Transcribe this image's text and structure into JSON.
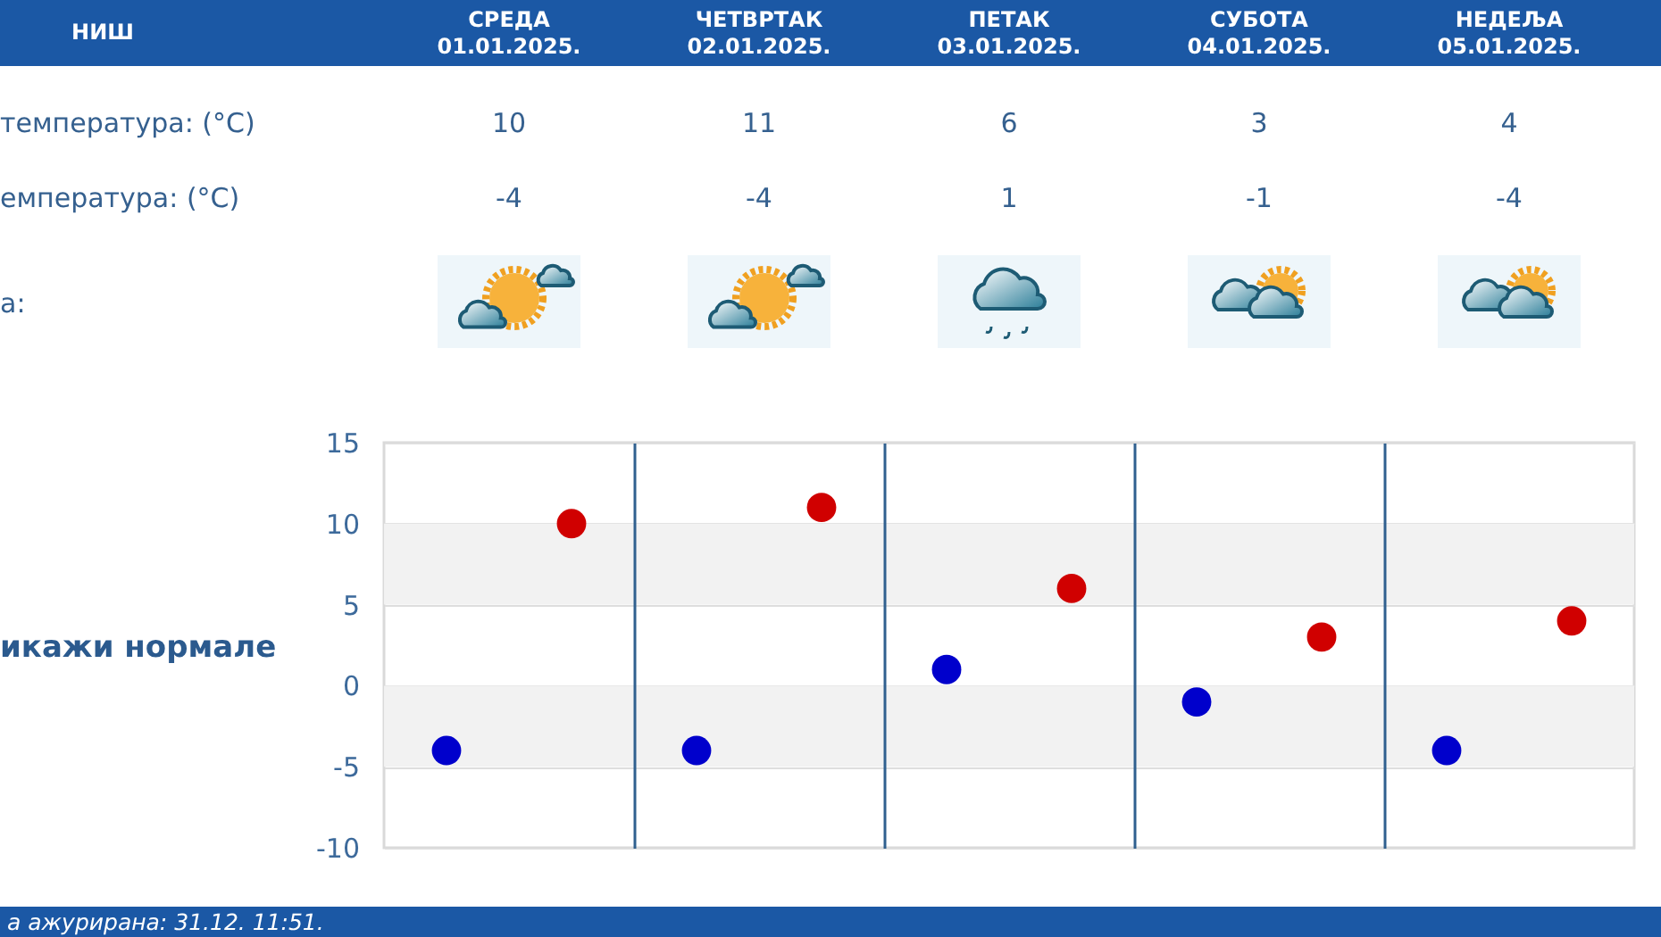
{
  "chart_data": {
    "type": "scatter",
    "title": "НИШ",
    "categories": [
      null,
      null,
      null,
      null,
      null
    ],
    "series": [
      {
        "color": "#d00000",
        "values": [
          10,
          11,
          6,
          3,
          4
        ]
      },
      {
        "color": "#0000cc",
        "values": [
          -4,
          -4,
          1,
          -1,
          -4
        ]
      }
    ],
    "ylim": [
      -10,
      15
    ],
    "yticks": [
      -10,
      -5,
      0,
      5,
      10,
      15
    ],
    "grid": true,
    "marker": "circle",
    "data_labels": true,
    "tick_labels": "y",
    "bands": [
      {
        "axis": "y",
        "from": 5,
        "to": 10,
        "color": "#f2f2f2"
      },
      {
        "axis": "y",
        "from": -5,
        "to": 0,
        "color": "#f2f2f2"
      }
    ],
    "annotations": [
      "СРЕДА\n01.01.2025.",
      "ЧЕТВРТАК\n02.01.2025.",
      "ПЕТАК\n03.01.2025.",
      "СУБОТА\n04.01.2025.",
      "НЕДЕЉА\n05.01.2025.",
      "температура: (°C)",
      "емпература: (°C)",
      "а:",
      "икажи нормале",
      "а ажурирана: 31.12. 11:51."
    ]
  }
}
